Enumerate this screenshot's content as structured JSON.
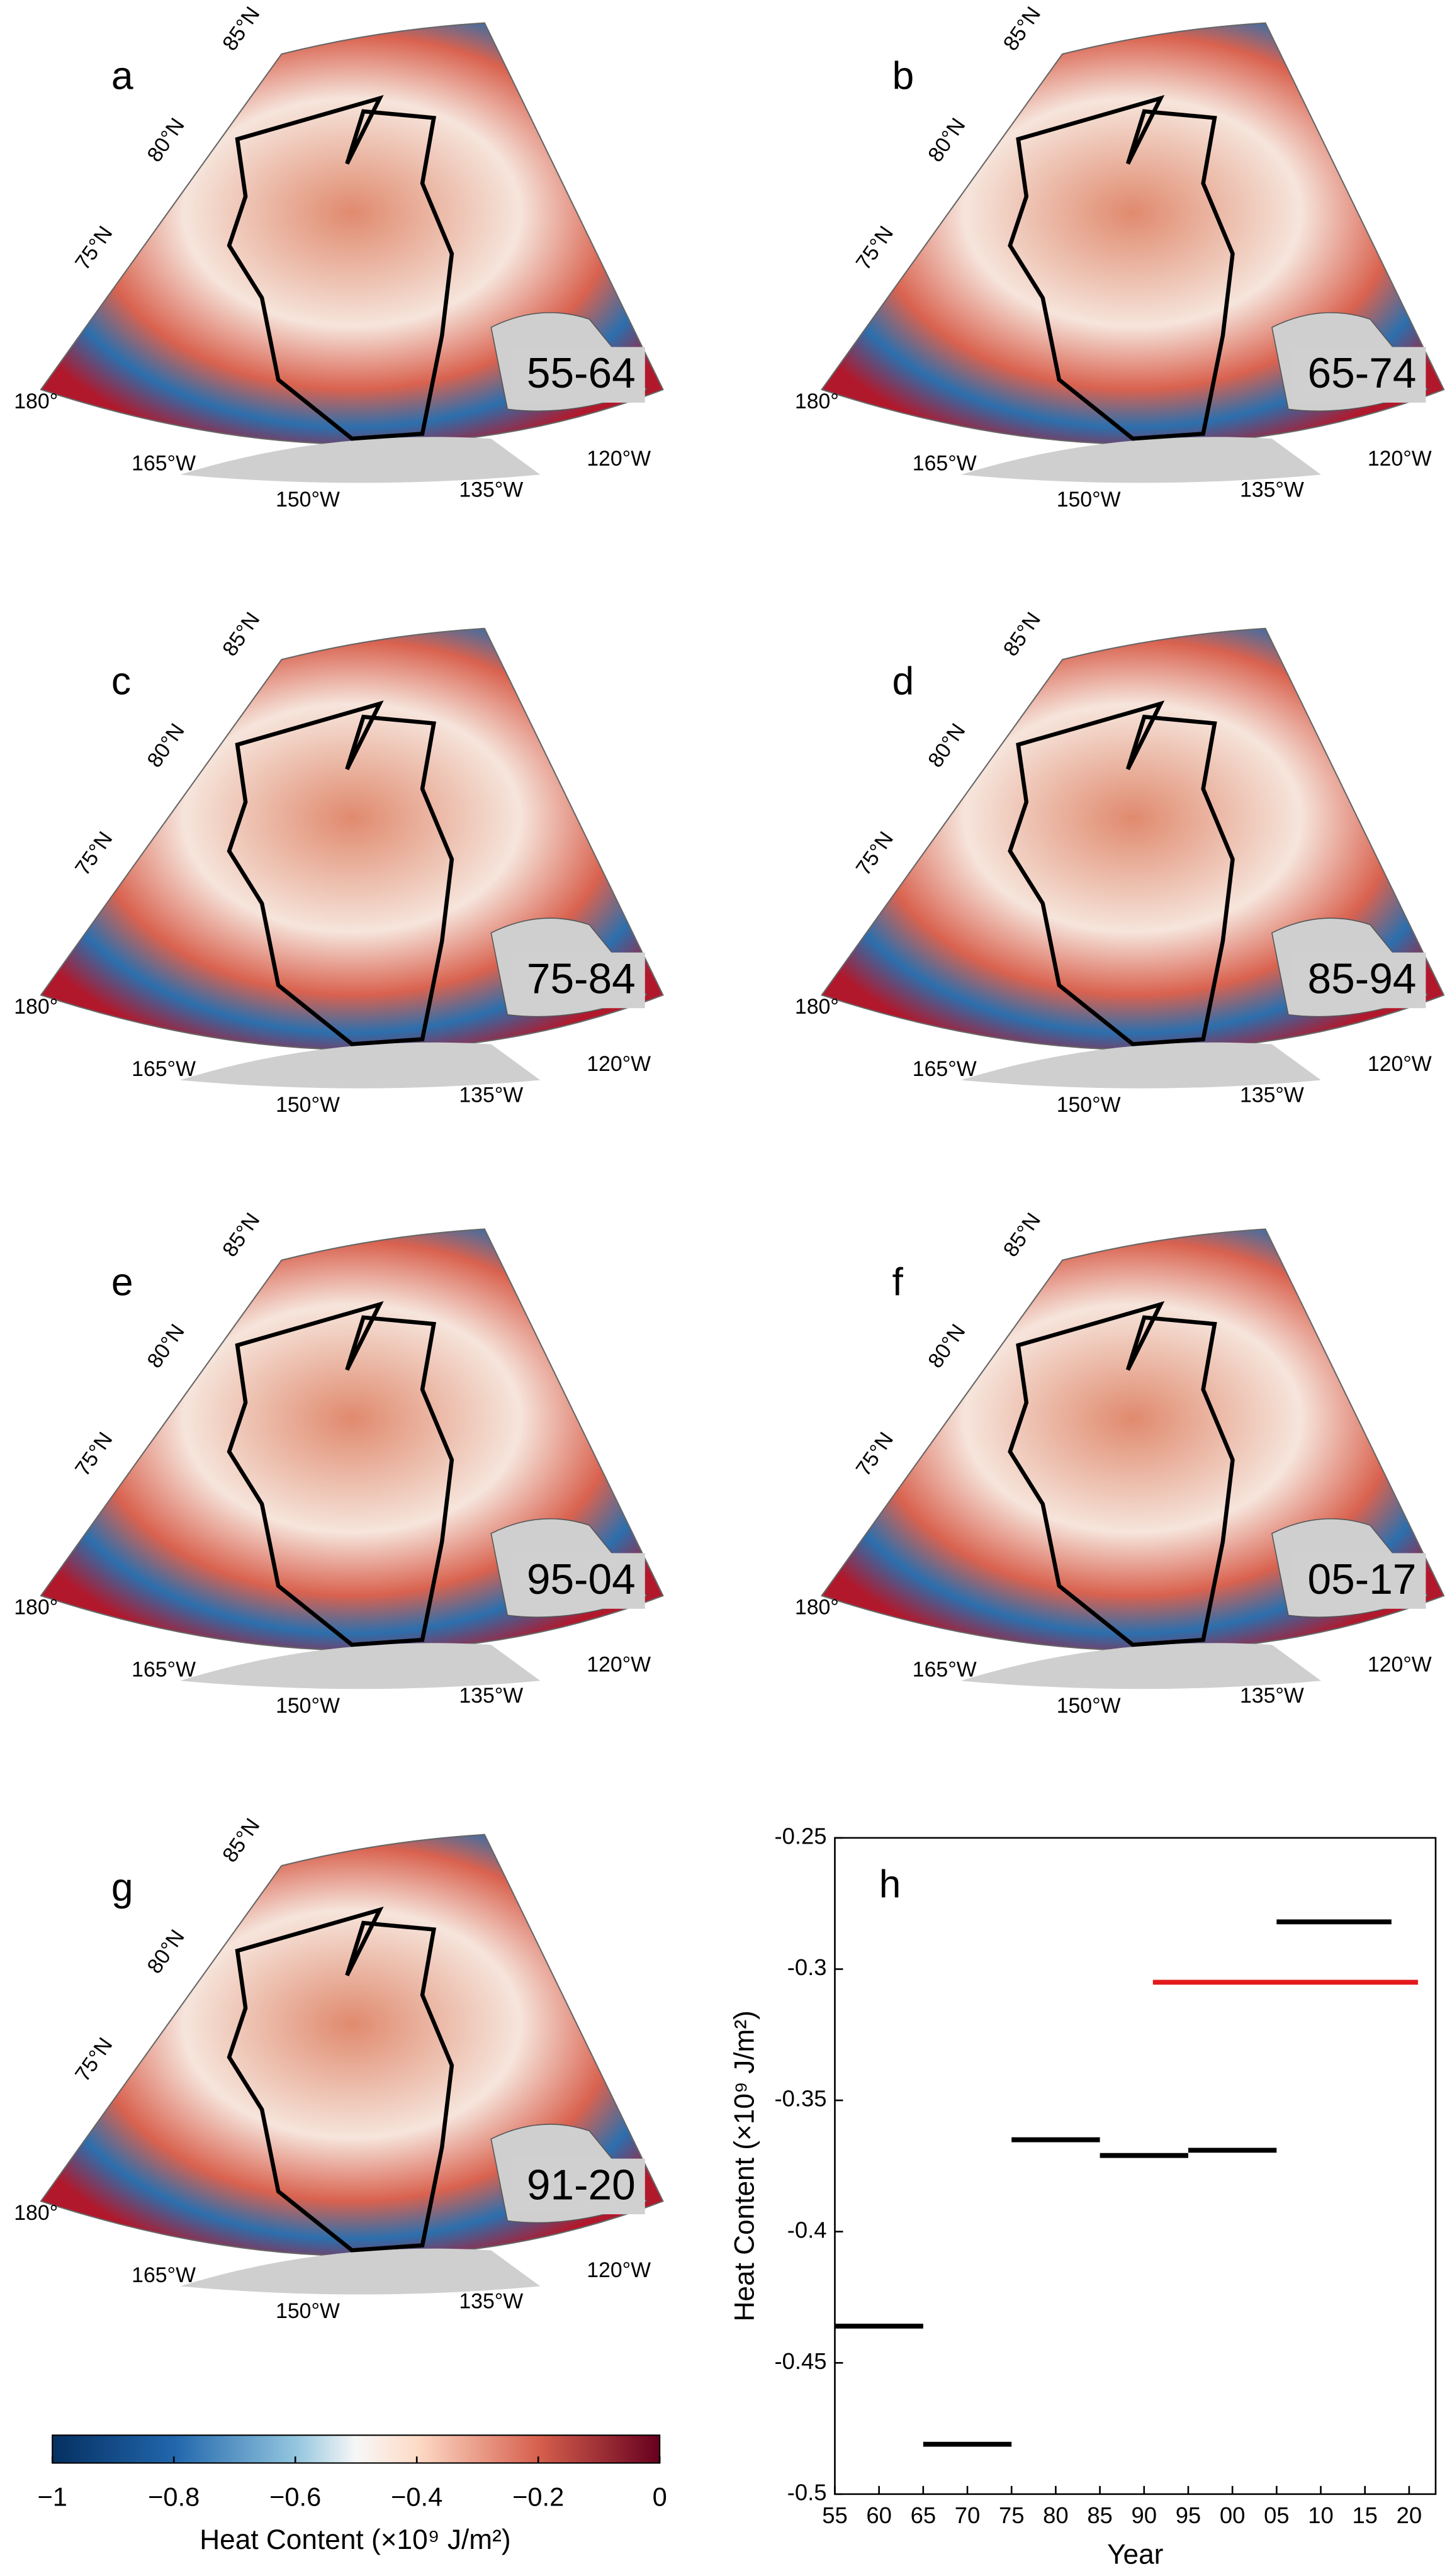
{
  "maps": [
    {
      "letter": "a",
      "period": "55-64"
    },
    {
      "letter": "b",
      "period": "65-74"
    },
    {
      "letter": "c",
      "period": "75-84"
    },
    {
      "letter": "d",
      "period": "85-94"
    },
    {
      "letter": "e",
      "period": "95-04"
    },
    {
      "letter": "f",
      "period": "05-17"
    },
    {
      "letter": "g",
      "period": "91-20"
    }
  ],
  "map_labels": {
    "lat": [
      "85°N",
      "80°N",
      "75°N"
    ],
    "lon": [
      "180°",
      "165°W",
      "150°W",
      "135°W",
      "120°W"
    ]
  },
  "colorbar": {
    "label": "Heat Content (×10⁹ J/m²)",
    "lim": [
      -1,
      0
    ],
    "ticks": [
      {
        "value": -1,
        "label": "−1"
      },
      {
        "value": -0.8,
        "label": "−0.8"
      },
      {
        "value": -0.6,
        "label": "−0.6"
      },
      {
        "value": -0.4,
        "label": "−0.4"
      },
      {
        "value": -0.2,
        "label": "−0.2"
      },
      0
    ]
  },
  "chart_data": {
    "type": "segment",
    "panel": "h",
    "xlabel": "Year",
    "ylabel": "Heat Content (×10⁹ J/m²)",
    "xlim": [
      1955,
      2023
    ],
    "ylim": [
      -0.5,
      -0.25
    ],
    "xticks": [
      {
        "value": 1955,
        "label": "55"
      },
      {
        "value": 1960,
        "label": "60"
      },
      {
        "value": 1965,
        "label": "65"
      },
      {
        "value": 1970,
        "label": "70"
      },
      {
        "value": 1975,
        "label": "75"
      },
      {
        "value": 1980,
        "label": "80"
      },
      {
        "value": 1985,
        "label": "85"
      },
      {
        "value": 1990,
        "label": "90"
      },
      {
        "value": 1995,
        "label": "95"
      },
      {
        "value": 2000,
        "label": "00"
      },
      {
        "value": 2005,
        "label": "05"
      },
      {
        "value": 2010,
        "label": "10"
      },
      {
        "value": 2015,
        "label": "15"
      },
      {
        "value": 2020,
        "label": "20"
      }
    ],
    "yticks": [
      -0.5,
      -0.45,
      -0.4,
      -0.35,
      -0.3,
      -0.25
    ],
    "segments": [
      {
        "start": 1955,
        "end": 1965,
        "value": -0.436,
        "color": "#000000"
      },
      {
        "start": 1965,
        "end": 1975,
        "value": -0.481,
        "color": "#000000"
      },
      {
        "start": 1975,
        "end": 1985,
        "value": -0.365,
        "color": "#000000"
      },
      {
        "start": 1985,
        "end": 1995,
        "value": -0.371,
        "color": "#000000"
      },
      {
        "start": 1995,
        "end": 2005,
        "value": -0.369,
        "color": "#000000"
      },
      {
        "start": 2005,
        "end": 2018,
        "value": -0.282,
        "color": "#000000"
      },
      {
        "start": 1991,
        "end": 2021,
        "value": -0.305,
        "color": "#e31a1c"
      }
    ]
  }
}
